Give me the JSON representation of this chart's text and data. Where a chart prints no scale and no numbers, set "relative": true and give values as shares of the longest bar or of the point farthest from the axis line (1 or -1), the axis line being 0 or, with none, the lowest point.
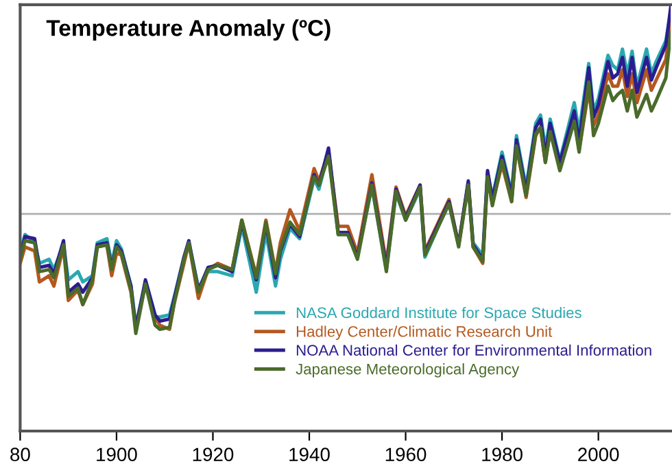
{
  "chart_data": {
    "type": "line",
    "title": "Temperature Anomaly (ºC)",
    "relative": true,
    "x": [
      1880,
      1881,
      1883,
      1884,
      1886,
      1887,
      1889,
      1890,
      1892,
      1893,
      1895,
      1896,
      1898,
      1899,
      1900,
      1901,
      1903,
      1904,
      1906,
      1908,
      1909,
      1911,
      1912,
      1914,
      1915,
      1917,
      1919,
      1921,
      1924,
      1926,
      1929,
      1931,
      1933,
      1934,
      1936,
      1938,
      1941,
      1942,
      1944,
      1946,
      1948,
      1950,
      1953,
      1956,
      1958,
      1960,
      1963,
      1964,
      1967,
      1969,
      1971,
      1973,
      1974,
      1976,
      1977,
      1978,
      1980,
      1982,
      1983,
      1985,
      1987,
      1988,
      1989,
      1990,
      1992,
      1995,
      1996,
      1998,
      1999,
      2000,
      2002,
      2003,
      2004,
      2005,
      2006,
      2007,
      2008,
      2010,
      2011,
      2012,
      2014,
      2015
    ],
    "xlim": [
      1880,
      2015
    ],
    "xticks": [
      {
        "value": 1880,
        "label": "80"
      },
      1900,
      1920,
      1940,
      1960,
      1980,
      2000
    ],
    "tick_labels": "x",
    "grid": false,
    "legend": "bottom right",
    "marker": "none",
    "line_style": "solid",
    "ref_lines": [
      {
        "axis": "y",
        "value": 0,
        "color": "#b0b0b0"
      }
    ],
    "series": [
      {
        "name": "NASA Goddard Institute for Space Studies",
        "color": "#2aa8b0",
        "values": [
          -0.19,
          -0.1,
          -0.14,
          -0.24,
          -0.22,
          -0.27,
          -0.15,
          -0.32,
          -0.28,
          -0.33,
          -0.3,
          -0.14,
          -0.12,
          -0.24,
          -0.13,
          -0.17,
          -0.35,
          -0.54,
          -0.33,
          -0.5,
          -0.5,
          -0.49,
          -0.4,
          -0.21,
          -0.14,
          -0.36,
          -0.28,
          -0.28,
          -0.3,
          -0.06,
          -0.38,
          -0.09,
          -0.35,
          -0.22,
          -0.07,
          -0.12,
          0.17,
          0.12,
          0.3,
          -0.1,
          -0.1,
          -0.2,
          0.13,
          -0.27,
          0.1,
          -0.03,
          0.12,
          -0.21,
          -0.05,
          0.05,
          -0.15,
          0.15,
          -0.14,
          -0.2,
          0.2,
          0.08,
          0.3,
          0.1,
          0.38,
          0.13,
          0.44,
          0.48,
          0.32,
          0.46,
          0.26,
          0.54,
          0.4,
          0.73,
          0.5,
          0.56,
          0.77,
          0.72,
          0.7,
          0.8,
          0.68,
          0.79,
          0.62,
          0.8,
          0.68,
          0.74,
          0.84,
          0.98
        ]
      },
      {
        "name": "Hadley Center/Climatic Research Unit",
        "color": "#b5581f",
        "values": [
          -0.24,
          -0.16,
          -0.18,
          -0.33,
          -0.3,
          -0.35,
          -0.16,
          -0.42,
          -0.37,
          -0.44,
          -0.34,
          -0.16,
          -0.15,
          -0.3,
          -0.19,
          -0.2,
          -0.38,
          -0.55,
          -0.34,
          -0.5,
          -0.54,
          -0.56,
          -0.43,
          -0.24,
          -0.14,
          -0.41,
          -0.27,
          -0.24,
          -0.27,
          -0.03,
          -0.3,
          -0.03,
          -0.28,
          -0.14,
          0.02,
          -0.08,
          0.22,
          0.16,
          0.3,
          -0.06,
          -0.06,
          -0.19,
          0.19,
          -0.24,
          0.13,
          -0.01,
          0.14,
          -0.18,
          -0.03,
          0.07,
          -0.15,
          0.15,
          -0.16,
          -0.24,
          0.19,
          0.05,
          0.24,
          0.06,
          0.33,
          0.08,
          0.38,
          0.42,
          0.25,
          0.41,
          0.22,
          0.46,
          0.31,
          0.6,
          0.43,
          0.48,
          0.68,
          0.62,
          0.62,
          0.7,
          0.57,
          0.68,
          0.54,
          0.7,
          0.6,
          0.65,
          0.75,
          0.93
        ]
      },
      {
        "name": "NOAA National Center for Environmental Information",
        "color": "#2b1d8f",
        "values": [
          -0.21,
          -0.11,
          -0.12,
          -0.26,
          -0.25,
          -0.29,
          -0.13,
          -0.38,
          -0.34,
          -0.38,
          -0.31,
          -0.15,
          -0.14,
          -0.26,
          -0.15,
          -0.18,
          -0.35,
          -0.56,
          -0.32,
          -0.49,
          -0.52,
          -0.51,
          -0.41,
          -0.21,
          -0.13,
          -0.37,
          -0.26,
          -0.25,
          -0.28,
          -0.04,
          -0.32,
          -0.05,
          -0.31,
          -0.18,
          -0.05,
          -0.11,
          0.19,
          0.14,
          0.32,
          -0.09,
          -0.09,
          -0.21,
          0.15,
          -0.26,
          0.12,
          -0.02,
          0.14,
          -0.19,
          -0.04,
          0.06,
          -0.15,
          0.16,
          -0.15,
          -0.22,
          0.21,
          0.07,
          0.28,
          0.09,
          0.36,
          0.11,
          0.42,
          0.46,
          0.28,
          0.44,
          0.25,
          0.5,
          0.35,
          0.71,
          0.47,
          0.53,
          0.74,
          0.66,
          0.68,
          0.76,
          0.62,
          0.76,
          0.59,
          0.76,
          0.65,
          0.71,
          0.82,
          1.0
        ]
      },
      {
        "name": "Japanese Meteorological Agency",
        "color": "#4a6b2a",
        "values": [
          -0.22,
          -0.13,
          -0.14,
          -0.28,
          -0.27,
          -0.31,
          -0.15,
          -0.4,
          -0.36,
          -0.44,
          -0.32,
          -0.16,
          -0.15,
          -0.27,
          -0.16,
          -0.19,
          -0.37,
          -0.58,
          -0.34,
          -0.54,
          -0.56,
          -0.55,
          -0.43,
          -0.22,
          -0.14,
          -0.38,
          -0.27,
          -0.25,
          -0.27,
          -0.03,
          -0.31,
          -0.04,
          -0.29,
          -0.17,
          -0.04,
          -0.1,
          0.18,
          0.14,
          0.28,
          -0.1,
          -0.1,
          -0.22,
          0.14,
          -0.28,
          0.11,
          -0.03,
          0.13,
          -0.2,
          -0.05,
          0.05,
          -0.16,
          0.14,
          -0.16,
          -0.23,
          0.18,
          0.04,
          0.26,
          0.06,
          0.33,
          0.09,
          0.39,
          0.42,
          0.25,
          0.4,
          0.21,
          0.45,
          0.3,
          0.64,
          0.38,
          0.44,
          0.62,
          0.55,
          0.58,
          0.6,
          0.5,
          0.6,
          0.47,
          0.58,
          0.5,
          0.55,
          0.66,
          0.88
        ]
      }
    ]
  }
}
